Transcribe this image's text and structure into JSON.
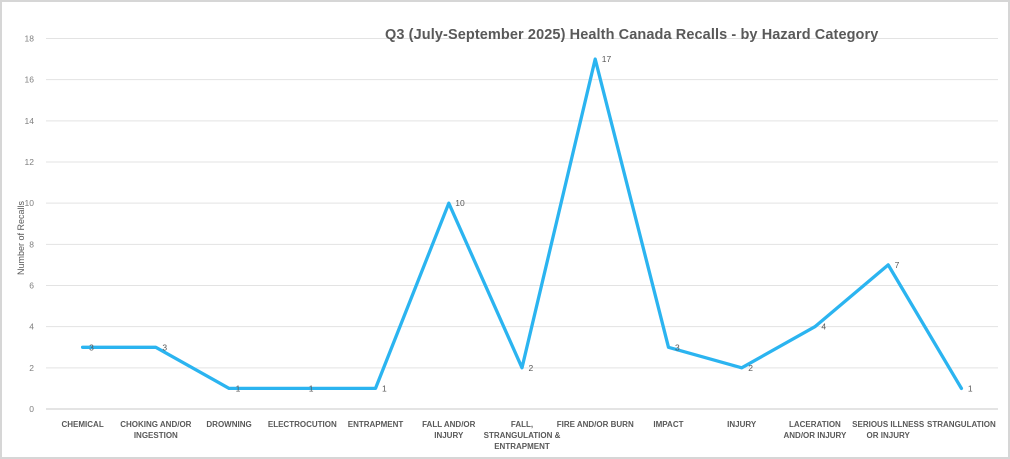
{
  "chart_data": {
    "type": "line",
    "title": "Q3 (July-September 2025) Health Canada Recalls - by Hazard Category",
    "ylabel": "Number of Recalls",
    "xlabel": "",
    "categories": [
      "CHEMICAL",
      "CHOKING AND/OR INGESTION",
      "DROWNING",
      "ELECTROCUTION",
      "ENTRAPMENT",
      "FALL AND/OR INJURY",
      "FALL, STRANGULATION & ENTRAPMENT",
      "FIRE AND/OR BURN",
      "IMPACT",
      "INJURY",
      "LACERATION AND/OR INJURY",
      "SERIOUS ILLNESS OR INJURY",
      "STRANGULATION"
    ],
    "category_label_lines": [
      [
        "CHEMICAL"
      ],
      [
        "CHOKING AND/OR",
        "INGESTION"
      ],
      [
        "DROWNING"
      ],
      [
        "ELECTROCUTION"
      ],
      [
        "ENTRAPMENT"
      ],
      [
        "FALL AND/OR",
        "INJURY"
      ],
      [
        "FALL,",
        "STRANGULATION &",
        "ENTRAPMENT"
      ],
      [
        "FIRE AND/OR BURN"
      ],
      [
        "IMPACT"
      ],
      [
        "INJURY"
      ],
      [
        "LACERATION",
        "AND/OR INJURY"
      ],
      [
        "SERIOUS ILLNESS",
        "OR INJURY"
      ],
      [
        "STRANGULATION"
      ]
    ],
    "values": [
      3,
      3,
      1,
      1,
      1,
      10,
      2,
      17,
      3,
      2,
      4,
      7,
      1
    ],
    "ylim": [
      0,
      18
    ],
    "ytick_step": 2,
    "grid": true,
    "legend": false,
    "data_labels": true,
    "colors": {
      "line": "#2BB4F0",
      "title_text": "#595959",
      "axis_tick_text": "#7f7f7f",
      "category_text": "#595959",
      "data_label_text": "#595959",
      "gridline": "#e3e3e3",
      "axis_line": "#c9c9c9",
      "background": "#ffffff",
      "frame_border": "#d6d6d6"
    }
  }
}
